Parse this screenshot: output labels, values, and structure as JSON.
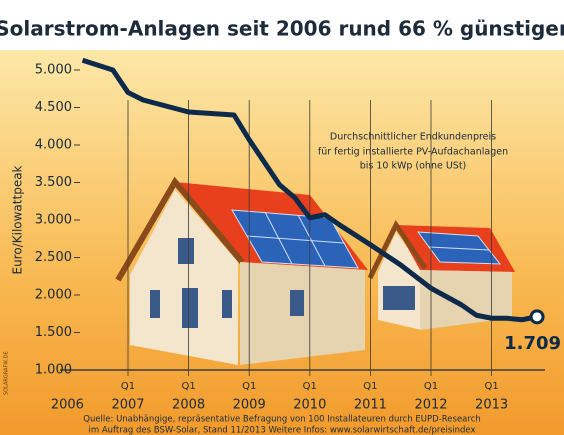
{
  "chart_data": {
    "type": "line",
    "title": "Solarstrom-Anlagen seit 2006 rund 66 % günstiger",
    "y_label": "Euro/Kilowattpeak",
    "annotation": [
      "Durchschnittlicher Endkundenpreis",
      "für fertig installierte PV-Aufdachanlagen",
      "bis 10 kWp (ohne USt)"
    ],
    "source": [
      "Quelle: Unabhängige, repräsentative Befragung von 100 Installateuren durch EUPD-Research",
      "im Auftrag des BSW-Solar, Stand 11/2013     Weitere Infos: www.solarwirtschaft.de/preisindex"
    ],
    "credit": "SOLARGRAFIK.DE",
    "quarter_label": "Q1",
    "x": [
      2006.25,
      2006.75,
      2007.0,
      2007.25,
      2008.0,
      2008.75,
      2009.0,
      2009.5,
      2009.75,
      2010.0,
      2010.25,
      2010.5,
      2011.0,
      2011.5,
      2012.0,
      2012.5,
      2012.75,
      2013.0,
      2013.25,
      2013.5,
      2013.75
    ],
    "values": [
      5130,
      5000,
      4700,
      4600,
      4440,
      4400,
      4070,
      3470,
      3300,
      3030,
      3070,
      2930,
      2670,
      2400,
      2090,
      1870,
      1730,
      1690,
      1690,
      1670,
      1709
    ],
    "value_labels": [
      null,
      null,
      null,
      null,
      null,
      null,
      null,
      null,
      null,
      null,
      null,
      null,
      null,
      null,
      null,
      null,
      null,
      null,
      null,
      null,
      "1.709"
    ],
    "color": "#0d2a4a",
    "xlim": [
      2006,
      2014
    ],
    "xticks": [
      {
        "value": 2006,
        "label": "2006"
      },
      {
        "value": 2007,
        "label": "2007"
      },
      {
        "value": 2008,
        "label": "2008"
      },
      {
        "value": 2009,
        "label": "2009"
      },
      {
        "value": 2010,
        "label": "2010"
      },
      {
        "value": 2011,
        "label": "2011"
      },
      {
        "value": 2012,
        "label": "2012"
      },
      {
        "value": 2013,
        "label": "2013"
      }
    ],
    "ylim": [
      1000,
      5200
    ],
    "yticks": [
      {
        "value": 1000,
        "label": "1.000"
      },
      {
        "value": 1500,
        "label": "1.500"
      },
      {
        "value": 2000,
        "label": "2.000"
      },
      {
        "value": 2500,
        "label": "2.500"
      },
      {
        "value": 3000,
        "label": "3.000"
      },
      {
        "value": 3500,
        "label": "3.500"
      },
      {
        "value": 4000,
        "label": "4.000"
      },
      {
        "value": 4500,
        "label": "4.500"
      },
      {
        "value": 5000,
        "label": "5.000"
      }
    ],
    "grid": true
  }
}
